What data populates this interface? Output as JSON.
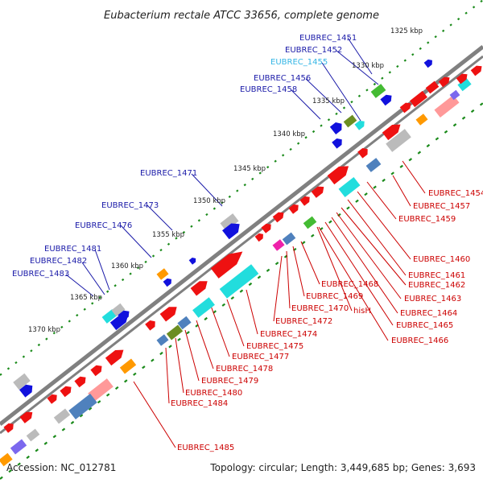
{
  "title": "Eubacterium rectale ATCC 33656, complete genome",
  "footer": {
    "accession": "Accession: NC_012781",
    "summary": "Topology: circular; Length: 3,449,685 bp; Genes: 3,693"
  },
  "colors": {
    "backbone": "#808080",
    "tick": "#1a8a1a",
    "outer_label": "#1a1aa8",
    "outer_label_alt": "#33b5e5",
    "inner_label": "#cc0000",
    "gene_red": "#ee1111",
    "gene_blue": "#1111dd",
    "gene_cyan": "#22dddd",
    "gene_gray": "#bbbbbb",
    "gene_green": "#44bb33",
    "gene_olive": "#6b8e23",
    "gene_orange": "#ff9900",
    "gene_steel": "#4f81bd",
    "gene_pink": "#ff9999",
    "gene_magenta": "#ee22aa",
    "gene_purple": "#7b68ee"
  },
  "scale_labels": [
    "1325 kbp",
    "1330 kbp",
    "1335 kbp",
    "1340 kbp",
    "1345 kbp",
    "1350 kbp",
    "1355 kbp",
    "1360 kbp",
    "1365 kbp",
    "1370 kbp"
  ],
  "outer_labels": [
    "EUBREC_1451",
    "EUBREC_1452",
    "EUBREC_1455",
    "EUBREC_1456",
    "EUBREC_1458",
    "EUBREC_1471",
    "EUBREC_1473",
    "EUBREC_1476",
    "EUBREC_1481",
    "EUBREC_1482",
    "EUBREC_1483"
  ],
  "inner_labels": [
    "EUBREC_1454",
    "EUBREC_1457",
    "EUBREC_1459",
    "EUBREC_1460",
    "EUBREC_1461",
    "EUBREC_1462",
    "EUBREC_1463",
    "EUBREC_1464",
    "EUBREC_1465",
    "EUBREC_1466",
    "EUBREC_1468",
    "EUBREC_1469",
    "hisH",
    "EUBREC_1470",
    "EUBREC_1472",
    "EUBREC_1474",
    "EUBREC_1475",
    "EUBREC_1477",
    "EUBREC_1478",
    "EUBREC_1479",
    "EUBREC_1480",
    "EUBREC_1484",
    "EUBREC_1485"
  ]
}
